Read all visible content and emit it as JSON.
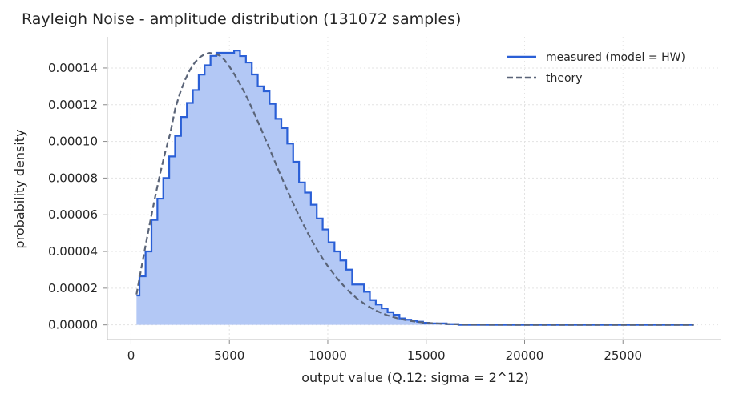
{
  "chart_data": {
    "type": "area",
    "title": "Rayleigh Noise - amplitude distribution (131072 samples)",
    "xlabel": "output value (Q.12: sigma = 2^12)",
    "ylabel": "probability density",
    "xlim": [
      -1200,
      30000
    ],
    "ylim": [
      -8e-06,
      0.000157
    ],
    "xticks": [
      0,
      5000,
      10000,
      15000,
      20000,
      25000
    ],
    "xtick_labels": [
      "0",
      "5000",
      "10000",
      "15000",
      "20000",
      "25000"
    ],
    "yticks": [
      0,
      2e-05,
      4e-05,
      6e-05,
      8e-05,
      0.0001,
      0.00012,
      0.00014
    ],
    "ytick_labels": [
      "0.00000",
      "0.00002",
      "0.00004",
      "0.00006",
      "0.00008",
      "0.00010",
      "0.00012",
      "0.00014"
    ],
    "grid": true,
    "legend_position": "top-right",
    "series": [
      {
        "name": "measured (model = HW)",
        "style": "step-filled",
        "color": "#2a5fd6",
        "fill": "#b3c8f5",
        "x": [
          280,
          430,
          740,
          1040,
          1340,
          1640,
          1940,
          2240,
          2540,
          2840,
          3140,
          3440,
          3740,
          4040,
          4340,
          4640,
          4940,
          5240,
          5540,
          5840,
          6140,
          6440,
          6740,
          7040,
          7340,
          7640,
          7940,
          8240,
          8540,
          8840,
          9140,
          9440,
          9740,
          10040,
          10340,
          10640,
          10940,
          11240,
          11540,
          11840,
          12140,
          12440,
          12740,
          13040,
          13340,
          13640,
          13940,
          14240,
          14540,
          14840,
          15140,
          16040,
          16640,
          28600
        ],
        "y": [
          1.6e-05,
          2.65e-05,
          4e-05,
          5.72e-05,
          6.88e-05,
          8e-05,
          9.18e-05,
          0.000103,
          0.0001133,
          0.000121,
          0.000128,
          0.0001364,
          0.0001415,
          0.0001466,
          0.0001483,
          0.0001483,
          0.0001483,
          0.0001495,
          0.0001465,
          0.000143,
          0.0001365,
          0.00013,
          0.0001273,
          0.0001205,
          0.0001123,
          0.0001073,
          9.88e-05,
          8.89e-05,
          7.76e-05,
          7.21e-05,
          6.55e-05,
          5.8e-05,
          5.2e-05,
          4.5e-05,
          4e-05,
          3.51e-05,
          3.01e-05,
          2.2e-05,
          2.2e-05,
          1.8e-05,
          1.35e-05,
          1.11e-05,
          9e-06,
          6.9e-06,
          5.5e-06,
          3.5e-06,
          2.8e-06,
          2.2e-06,
          1.7e-06,
          1.1e-06,
          8e-07,
          4e-07,
          0.0,
          0.0
        ]
      },
      {
        "name": "theory",
        "style": "dashed",
        "color": "#5a6478",
        "x": [
          280,
          500,
          750,
          1000,
          1250,
          1500,
          1750,
          2000,
          2250,
          2500,
          2750,
          3000,
          3250,
          3500,
          3750,
          4000,
          4250,
          4500,
          4750,
          5000,
          5250,
          5500,
          5750,
          6000,
          6250,
          6500,
          6750,
          7000,
          7250,
          7500,
          7750,
          8000,
          8250,
          8500,
          8750,
          9000,
          9250,
          9500,
          9750,
          10000,
          10500,
          11000,
          11500,
          12000,
          12500,
          13000,
          13500,
          14000,
          14500,
          15000,
          16000,
          17000,
          18000,
          20000,
          22000,
          25000,
          28600
        ],
        "y": [
          1.66e-05,
          2.95e-05,
          4.38e-05,
          5.77e-05,
          7.1e-05,
          8.34e-05,
          9.47e-05,
          0.0001047,
          0.0001181,
          0.0001266,
          0.0001336,
          0.0001391,
          0.0001431,
          0.0001459,
          0.0001476,
          0.0001482,
          0.0001478,
          0.0001468,
          0.0001444,
          0.0001408,
          0.0001366,
          0.000132,
          0.000127,
          0.0001215,
          0.0001156,
          0.0001095,
          0.0001033,
          9.7e-05,
          9.06e-05,
          8.42e-05,
          7.8e-05,
          7.19e-05,
          6.6e-05,
          6.03e-05,
          5.49e-05,
          4.97e-05,
          4.48e-05,
          4.02e-05,
          3.6e-05,
          3.2e-05,
          2.5e-05,
          1.9e-05,
          1.42e-05,
          1.04e-05,
          7.5e-06,
          5.3e-06,
          3.7e-06,
          2.5e-06,
          1.7e-06,
          1.1e-06,
          5e-07,
          2e-07,
          1e-07,
          0.0,
          0.0,
          0.0,
          0.0
        ]
      }
    ]
  }
}
